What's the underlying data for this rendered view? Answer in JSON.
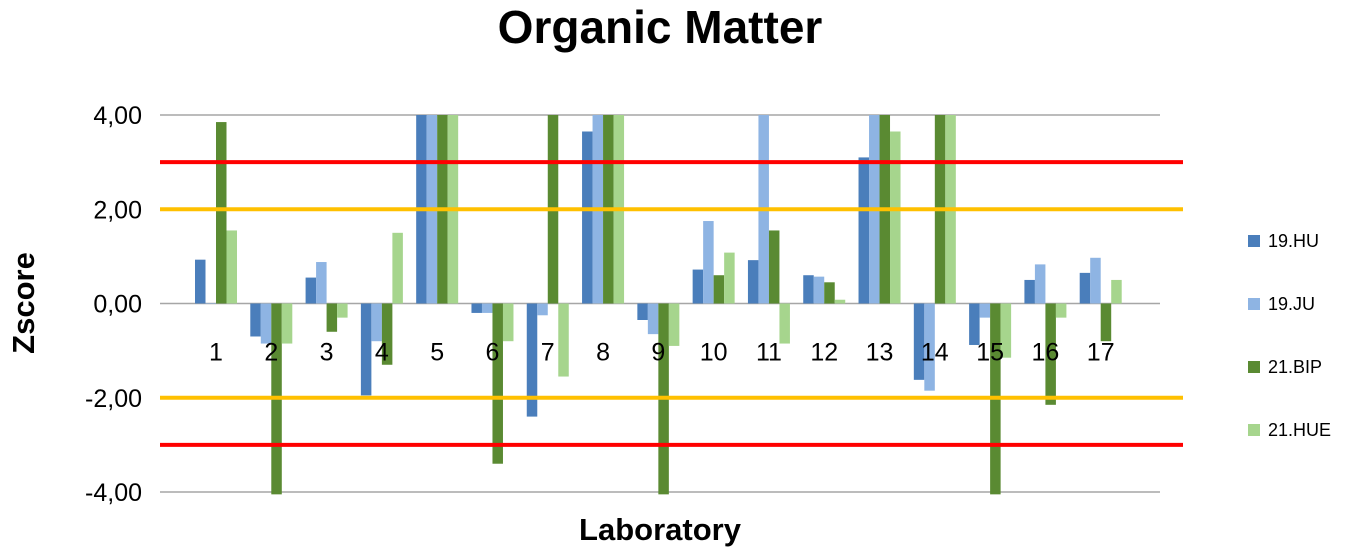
{
  "chart_data": {
    "type": "bar",
    "title": "Organic Matter",
    "xlabel": "Laboratory",
    "ylabel": "Zscore",
    "ylim": [
      -4,
      4
    ],
    "yticks": [
      4,
      2,
      0,
      -2,
      -4
    ],
    "ytick_labels": [
      "4,00",
      "2,00",
      "0,00",
      "-2,00",
      "-4,00"
    ],
    "categories": [
      "1",
      "2",
      "3",
      "4",
      "5",
      "6",
      "7",
      "8",
      "9",
      "10",
      "11",
      "12",
      "13",
      "14",
      "15",
      "16",
      "17"
    ],
    "series": [
      {
        "name": "19.HU",
        "color": "#4A7EBB",
        "values": [
          0.93,
          -0.7,
          0.55,
          -1.95,
          4.0,
          -0.2,
          -2.4,
          3.65,
          -0.35,
          0.72,
          0.92,
          0.6,
          3.1,
          -1.62,
          -0.88,
          0.5,
          0.65
        ]
      },
      {
        "name": "19.JU",
        "color": "#8EB4E3",
        "values": [
          0.0,
          -0.85,
          0.88,
          -0.8,
          4.0,
          -0.2,
          -0.25,
          4.0,
          -0.65,
          1.75,
          4.0,
          0.57,
          4.0,
          -1.85,
          -0.3,
          0.83,
          0.97
        ]
      },
      {
        "name": "21.BIP",
        "color": "#5A8A32",
        "values": [
          3.85,
          -4.05,
          -0.6,
          -1.3,
          4.0,
          -3.4,
          4.0,
          4.0,
          -4.05,
          0.6,
          1.55,
          0.45,
          4.0,
          4.0,
          -4.05,
          -2.15,
          -0.8
        ]
      },
      {
        "name": "21.HUE",
        "color": "#A6D58D",
        "values": [
          1.55,
          -0.85,
          -0.3,
          1.5,
          4.0,
          -0.8,
          -1.55,
          4.0,
          -0.9,
          1.08,
          -0.85,
          0.08,
          3.65,
          4.0,
          -1.15,
          -0.3,
          0.5
        ]
      }
    ],
    "reference_lines": [
      {
        "value": 3,
        "color": "#FF0000"
      },
      {
        "value": 2,
        "color": "#FFC000"
      },
      {
        "value": -2,
        "color": "#FFC000"
      },
      {
        "value": -3,
        "color": "#FF0000"
      }
    ],
    "grid": true,
    "legend": "right"
  }
}
